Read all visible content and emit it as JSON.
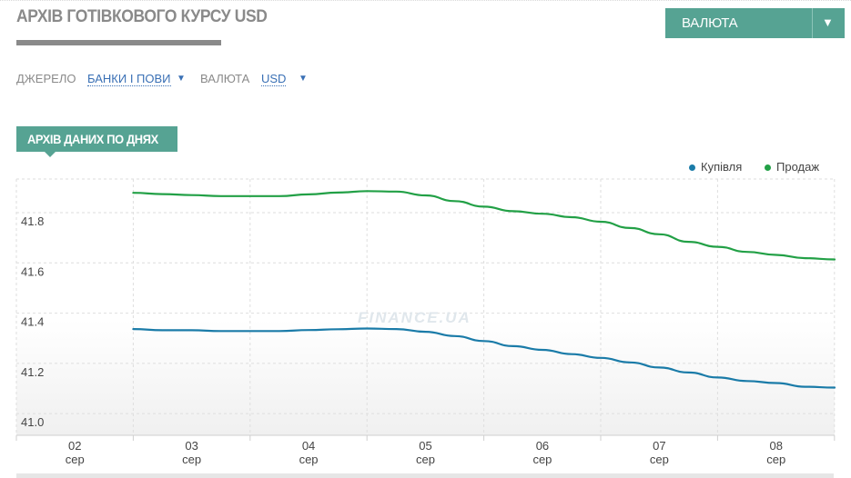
{
  "header": {
    "title": "АРХІВ ГОТІВКОВОГО КУРСУ USD",
    "currency_button": "ВАЛЮТА",
    "currency_button_arrow": "▼"
  },
  "filters": {
    "source_label": "ДЖЕРЕЛО",
    "source_value": "БАНКИ І ПОВИ",
    "currency_label": "ВАЛЮТА",
    "currency_value": "USD",
    "caret": "▼"
  },
  "tab": {
    "label": "АРХІВ ДАНИХ ПО ДНЯХ"
  },
  "watermark": "FINANCE.UA",
  "colors": {
    "accent": "#56a393",
    "buy": "#1a7ba8",
    "sell": "#22a046",
    "link": "#3a70b5"
  },
  "chart_data": {
    "type": "line",
    "title": "",
    "xlabel": "",
    "ylabel": "",
    "ylim": [
      40.95,
      41.97
    ],
    "y_ticks": [
      41.0,
      41.2,
      41.4,
      41.6,
      41.8
    ],
    "x_ticks": [
      {
        "day": "02",
        "month": "сер"
      },
      {
        "day": "03",
        "month": "сер"
      },
      {
        "day": "04",
        "month": "сер"
      },
      {
        "day": "05",
        "month": "сер"
      },
      {
        "day": "06",
        "month": "сер"
      },
      {
        "day": "07",
        "month": "сер"
      },
      {
        "day": "08",
        "month": "сер"
      }
    ],
    "x": [
      1.5,
      1.75,
      2.0,
      2.25,
      2.5,
      2.75,
      3.0,
      3.25,
      3.5,
      3.75,
      4.0,
      4.25,
      4.5,
      4.75,
      5.0,
      5.25,
      5.5,
      5.75,
      6.0,
      6.25,
      6.5,
      6.75,
      7.0,
      7.25,
      7.5
    ],
    "legend_position": "top-right",
    "grid": true,
    "series": [
      {
        "name": "Купівля",
        "color": "#1a7ba8",
        "values": [
          41.373,
          41.368,
          41.368,
          41.365,
          41.365,
          41.365,
          41.369,
          41.372,
          41.375,
          41.373,
          41.362,
          41.345,
          41.325,
          41.305,
          41.29,
          41.273,
          41.258,
          41.24,
          41.22,
          41.2,
          41.18,
          41.166,
          41.158,
          41.143,
          41.14
        ]
      },
      {
        "name": "Продаж",
        "color": "#22a046",
        "values": [
          41.915,
          41.91,
          41.906,
          41.902,
          41.902,
          41.902,
          41.909,
          41.916,
          41.922,
          41.92,
          41.905,
          41.882,
          41.86,
          41.842,
          41.832,
          41.818,
          41.8,
          41.775,
          41.75,
          41.72,
          41.7,
          41.68,
          41.668,
          41.655,
          41.65
        ]
      }
    ]
  }
}
